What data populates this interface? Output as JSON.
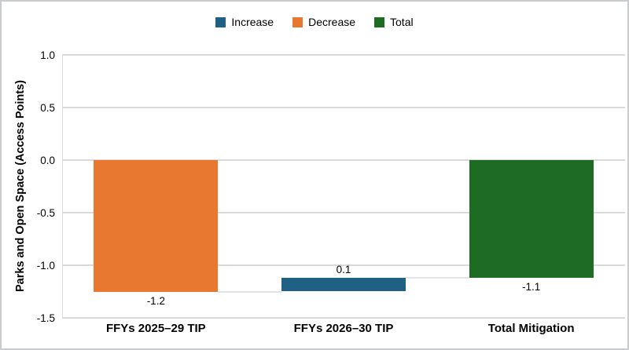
{
  "chart_data": {
    "type": "bar",
    "subtype": "waterfall",
    "title": "",
    "ylabel": "Parks and Open Space (Access Points)",
    "xlabel": "",
    "ylim": [
      -1.5,
      1.0
    ],
    "ytick_step": 0.5,
    "yticks": [
      "1.0",
      "0.5",
      "0.0",
      "-0.5",
      "-1.0",
      "-1.5"
    ],
    "grid": true,
    "legend_position": "top-center",
    "legend": [
      {
        "label": "Increase",
        "color": "#1F6185"
      },
      {
        "label": "Decrease",
        "color": "#E8772F"
      },
      {
        "label": "Total",
        "color": "#1E6B24"
      }
    ],
    "categories": [
      "FFYs 2025–29 TIP",
      "FFYs 2026–30 TIP",
      "Total Mitigation"
    ],
    "series": [
      {
        "name": "Decrease",
        "category": "FFYs 2025–29 TIP",
        "value": -1.2,
        "label": "-1.2",
        "label_position": "below",
        "color": "#E8772F",
        "draw_from": 0,
        "draw_to": -1.25
      },
      {
        "name": "Increase",
        "category": "FFYs 2026–30 TIP",
        "value": 0.1,
        "label": "0.1",
        "label_position": "above",
        "color": "#1F6185",
        "draw_from": -1.25,
        "draw_to": -1.12
      },
      {
        "name": "Total",
        "category": "Total Mitigation",
        "value": -1.1,
        "label": "-1.1",
        "label_position": "below",
        "color": "#1E6B24",
        "draw_from": 0,
        "draw_to": -1.12
      }
    ],
    "connectors": [
      {
        "from_bar": 0,
        "to_bar": 1,
        "level": -1.25
      },
      {
        "from_bar": 1,
        "to_bar": 2,
        "level": -1.12
      }
    ]
  }
}
